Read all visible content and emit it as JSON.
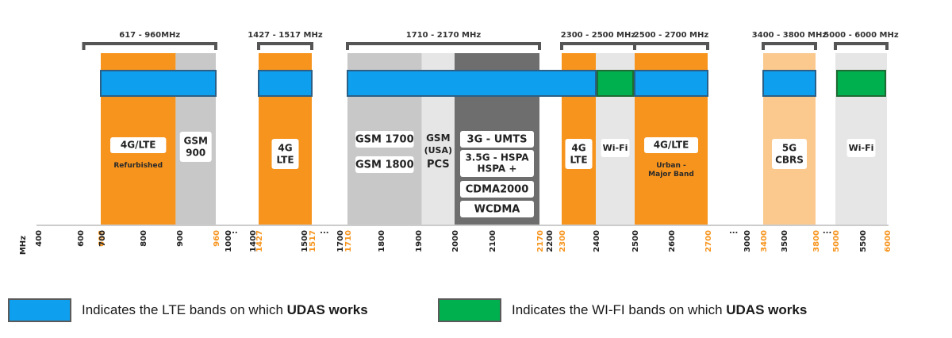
{
  "unit_label": "MHz",
  "colors": {
    "orange": "#f7941d",
    "light_orange": "#fbc98e",
    "gray": "#c8c8c8",
    "light_gray": "#e6e6e6",
    "dark_gray": "#6e6e6e",
    "lte_blue": "#0ea0ef",
    "wifi_green": "#00b04f",
    "accent_text": "#f7941d",
    "bracket": "#555555"
  },
  "brackets": [
    {
      "label": "617 - 960MHz",
      "from": 617,
      "to": 960
    },
    {
      "label": "1427 - 1517 MHz",
      "from": 1427,
      "to": 1517
    },
    {
      "label": "1710 - 2170 MHz",
      "from": 1710,
      "to": 2170
    },
    {
      "label": "2300 - 2500 MHz",
      "from": 2300,
      "to": 2500
    },
    {
      "label": "2500 - 2700 MHz",
      "from": 2500,
      "to": 2700
    },
    {
      "label": "3400 - 3800 MHz",
      "from": 3400,
      "to": 3800
    },
    {
      "label": "5000 - 6000 MHz",
      "from": 5000,
      "to": 6000
    }
  ],
  "bands": [
    {
      "from": 698,
      "to": 890,
      "color": "orange",
      "labels": [
        "4G/LTE"
      ],
      "sub": "Refurbished"
    },
    {
      "from": 890,
      "to": 960,
      "color": "gray",
      "labels": [
        "GSM",
        "900"
      ]
    },
    {
      "from": 1427,
      "to": 1517,
      "color": "orange",
      "labels": [
        "4G",
        "LTE"
      ]
    },
    {
      "from": 1710,
      "to": 1910,
      "color": "gray",
      "labels": [
        "GSM 1700"
      ],
      "labels2": [
        "GSM 1800"
      ]
    },
    {
      "from": 1910,
      "to": 2000,
      "color": "light_gray",
      "labels": [
        "GSM",
        "(USA)",
        "PCS"
      ]
    },
    {
      "from": 2000,
      "to": 2170,
      "color": "dark_gray",
      "labels": [
        "3G - UMTS"
      ],
      "labels2": [
        "3.5G - HSPA",
        "HSPA +"
      ],
      "labels3": [
        "CDMA2000"
      ],
      "labels4": [
        "WCDMA"
      ]
    },
    {
      "from": 2300,
      "to": 2400,
      "color": "orange",
      "labels": [
        "4G",
        "LTE"
      ]
    },
    {
      "from": 2400,
      "to": 2500,
      "color": "light_gray",
      "labels": [
        "Wi-Fi"
      ]
    },
    {
      "from": 2500,
      "to": 2700,
      "color": "orange",
      "labels": [
        "4G/LTE"
      ],
      "sub": "Urban - Major Band"
    },
    {
      "from": 3400,
      "to": 3800,
      "color": "light_orange",
      "labels": [
        "5G",
        "CBRS"
      ]
    },
    {
      "from": 5000,
      "to": 6000,
      "color": "light_gray",
      "labels": [
        "Wi-Fi"
      ]
    }
  ],
  "lte_bars": [
    {
      "from": 698,
      "to": 960
    },
    {
      "from": 1427,
      "to": 1517
    },
    {
      "from": 1710,
      "to": 2400
    },
    {
      "from": 2500,
      "to": 2700
    },
    {
      "from": 3400,
      "to": 3800
    }
  ],
  "wifi_bars": [
    {
      "from": 2400,
      "to": 2500
    },
    {
      "from": 5000,
      "to": 6000
    }
  ],
  "ticks": [
    {
      "label": "400",
      "v": 400
    },
    {
      "label": "600",
      "v": 600
    },
    {
      "label": "698",
      "v": 698,
      "hl": true
    },
    {
      "label": "700",
      "v": 700
    },
    {
      "label": "800",
      "v": 800
    },
    {
      "label": "900",
      "v": 900
    },
    {
      "label": "960",
      "v": 960,
      "hl": true
    },
    {
      "label": "1000",
      "v": 1000
    },
    {
      "label": "...",
      "v": 1090,
      "dots": true
    },
    {
      "label": "1400",
      "v": 1400
    },
    {
      "label": "1427",
      "v": 1427,
      "hl": true
    },
    {
      "label": "1500",
      "v": 1500
    },
    {
      "label": "1517",
      "v": 1517,
      "hl": true
    },
    {
      "label": "...",
      "v": 1600,
      "dots": true
    },
    {
      "label": "1700",
      "v": 1700
    },
    {
      "label": "1710",
      "v": 1710,
      "hl": true
    },
    {
      "label": "1800",
      "v": 1800
    },
    {
      "label": "1900",
      "v": 1900
    },
    {
      "label": "2000",
      "v": 2000
    },
    {
      "label": "2100",
      "v": 2100
    },
    {
      "label": "2170",
      "v": 2170,
      "hl": true
    },
    {
      "label": "2200",
      "v": 2200
    },
    {
      "label": "2300",
      "v": 2300,
      "hl": true
    },
    {
      "label": "2400",
      "v": 2400
    },
    {
      "label": "2500",
      "v": 2500
    },
    {
      "label": "2600",
      "v": 2600
    },
    {
      "label": "2700",
      "v": 2700,
      "hl": true
    },
    {
      "label": "...",
      "v": 2900,
      "dots": true
    },
    {
      "label": "3000",
      "v": 3000
    },
    {
      "label": "3400",
      "v": 3400,
      "hl": true
    },
    {
      "label": "3500",
      "v": 3500
    },
    {
      "label": "3800",
      "v": 3800,
      "hl": true
    },
    {
      "label": "...",
      "v": 4500,
      "dots": true
    },
    {
      "label": "5000",
      "v": 5000,
      "hl": true
    },
    {
      "label": "5500",
      "v": 5500
    },
    {
      "label": "6000",
      "v": 6000,
      "hl": true
    }
  ],
  "legend": {
    "lte_prefix": "Indicates the LTE bands on which ",
    "lte_bold": "UDAS works",
    "wifi_prefix": "Indicates the WI-FI bands on which ",
    "wifi_bold": "UDAS works"
  }
}
